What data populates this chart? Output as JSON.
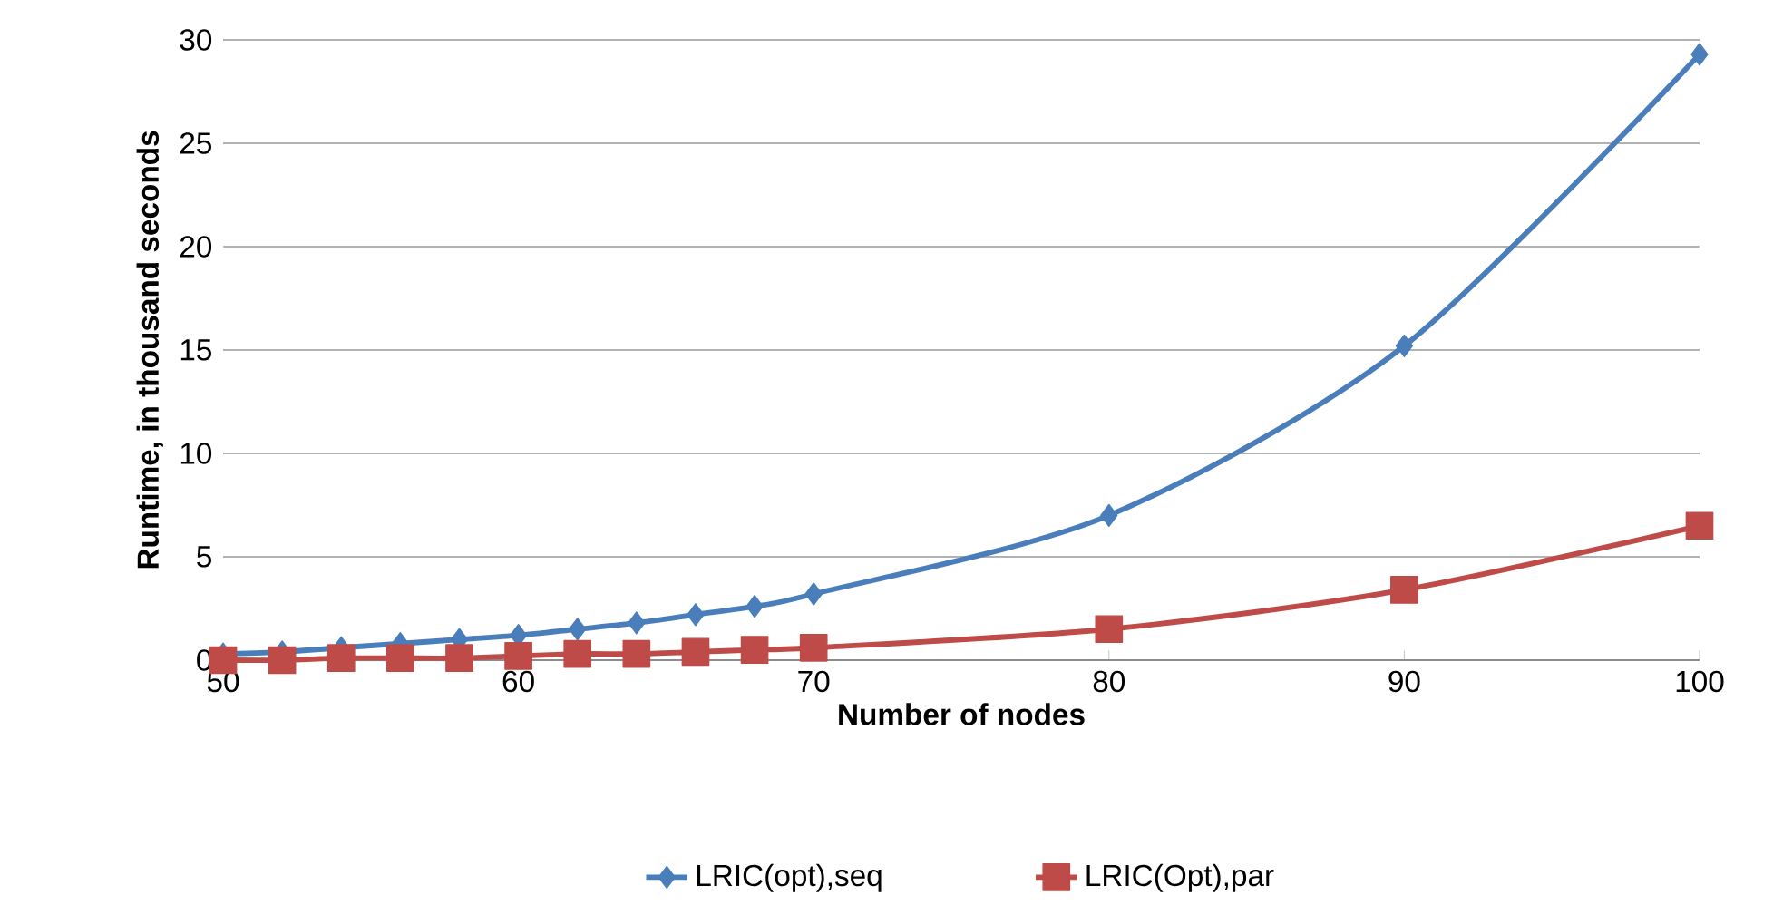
{
  "chart_data": {
    "type": "line",
    "xlabel": "Number of nodes",
    "ylabel": "Runtime, in thousand seconds",
    "xlim": [
      50,
      100
    ],
    "xticks": [
      50,
      60,
      70,
      80,
      90,
      100
    ],
    "ylim": [
      0,
      30
    ],
    "yticks": [
      0,
      5,
      10,
      15,
      20,
      25,
      30
    ],
    "grid": "y",
    "legend": "bottom",
    "series": [
      {
        "name": "LRIC(opt),seq",
        "color": "#4a7ebb",
        "marker": "diamond",
        "x": [
          50,
          52,
          54,
          56,
          58,
          60,
          62,
          64,
          66,
          68,
          70,
          80,
          90,
          100
        ],
        "values": [
          0.3,
          0.4,
          0.6,
          0.8,
          1.0,
          1.2,
          1.5,
          1.8,
          2.2,
          2.6,
          3.2,
          7.0,
          15.2,
          29.3
        ]
      },
      {
        "name": "LRIC(Opt),par",
        "color": "#be4b48",
        "marker": "square",
        "x": [
          50,
          52,
          54,
          56,
          58,
          60,
          62,
          64,
          66,
          68,
          70,
          80,
          90,
          100
        ],
        "values": [
          0,
          0,
          0.1,
          0.1,
          0.1,
          0.2,
          0.3,
          0.3,
          0.4,
          0.5,
          0.6,
          1.5,
          3.4,
          6.5
        ]
      }
    ]
  }
}
